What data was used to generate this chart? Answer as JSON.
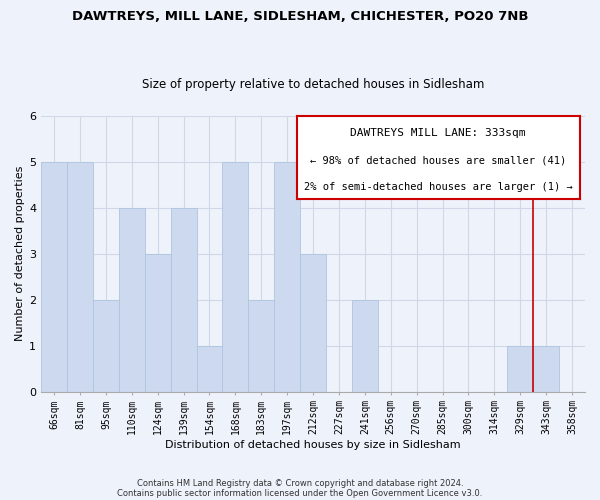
{
  "title": "DAWTREYS, MILL LANE, SIDLESHAM, CHICHESTER, PO20 7NB",
  "subtitle": "Size of property relative to detached houses in Sidlesham",
  "xlabel": "Distribution of detached houses by size in Sidlesham",
  "ylabel": "Number of detached properties",
  "bin_labels": [
    "66sqm",
    "81sqm",
    "95sqm",
    "110sqm",
    "124sqm",
    "139sqm",
    "154sqm",
    "168sqm",
    "183sqm",
    "197sqm",
    "212sqm",
    "227sqm",
    "241sqm",
    "256sqm",
    "270sqm",
    "285sqm",
    "300sqm",
    "314sqm",
    "329sqm",
    "343sqm",
    "358sqm"
  ],
  "bin_counts": [
    5,
    5,
    2,
    4,
    3,
    4,
    1,
    5,
    2,
    5,
    3,
    0,
    2,
    0,
    0,
    0,
    0,
    0,
    1,
    1,
    0
  ],
  "bar_color": "#ccd9ee",
  "bar_edge_color": "#aec4de",
  "vline_color": "#cc0000",
  "vline_x_index": 18.5,
  "annotation_title": "DAWTREYS MILL LANE: 333sqm",
  "annotation_line1": "← 98% of detached houses are smaller (41)",
  "annotation_line2": "2% of semi-detached houses are larger (1) →",
  "annotation_box_color": "#ffffff",
  "annotation_box_edge": "#cc0000",
  "footer1": "Contains HM Land Registry data © Crown copyright and database right 2024.",
  "footer2": "Contains public sector information licensed under the Open Government Licence v3.0.",
  "ylim": [
    0,
    6
  ],
  "yticks": [
    0,
    1,
    2,
    3,
    4,
    5,
    6
  ],
  "background_color": "#eef2fa",
  "grid_color": "#d0d8e8",
  "title_fontsize": 9.5,
  "subtitle_fontsize": 8.5,
  "axis_label_fontsize": 8,
  "tick_fontsize": 7,
  "annotation_title_fontsize": 8,
  "annotation_text_fontsize": 7.5,
  "footer_fontsize": 6
}
